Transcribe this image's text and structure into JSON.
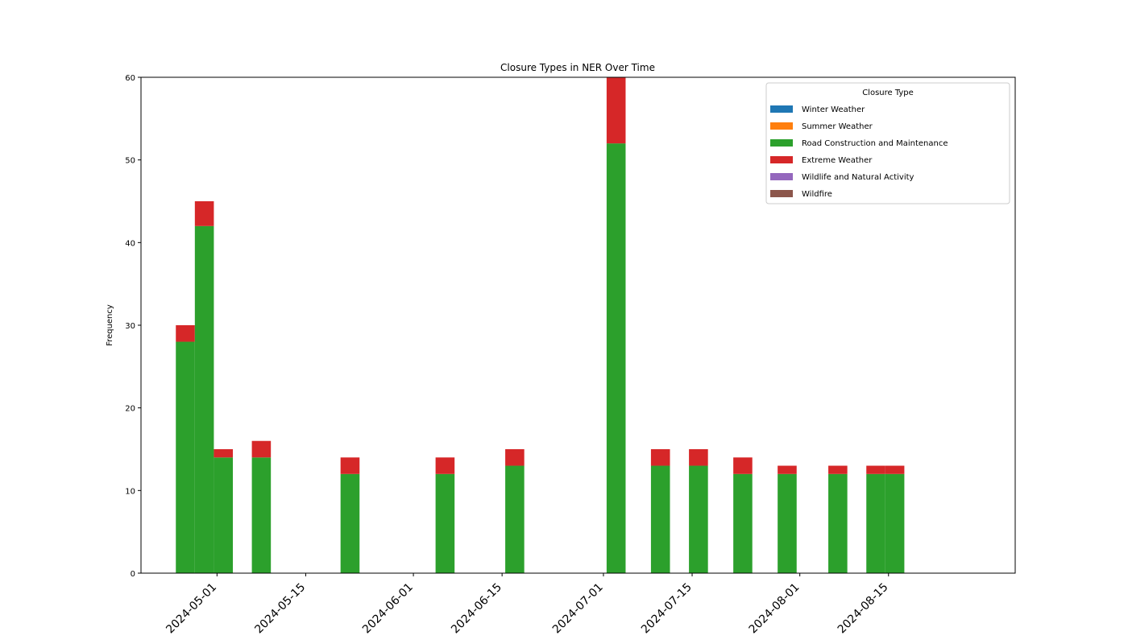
{
  "chart_data": {
    "type": "bar",
    "stacked": true,
    "title": "Closure Types in NER Over Time",
    "xlabel": "",
    "ylabel": "Frequency",
    "ylim": [
      0,
      60
    ],
    "yticks": [
      0,
      10,
      20,
      30,
      40,
      50,
      60
    ],
    "xlim": [
      "2024-04-19",
      "2024-09-04"
    ],
    "xticks": [
      "2024-05-01",
      "2024-05-15",
      "2024-06-01",
      "2024-06-15",
      "2024-07-01",
      "2024-07-15",
      "2024-08-01",
      "2024-08-15"
    ],
    "bar_width_days": 3,
    "grid": false,
    "legend": {
      "title": "Closure Type",
      "placement": "top-right"
    },
    "x": [
      "2024-04-26",
      "2024-04-29",
      "2024-05-02",
      "2024-05-08",
      "2024-05-22",
      "2024-06-06",
      "2024-06-17",
      "2024-07-03",
      "2024-07-10",
      "2024-07-16",
      "2024-07-23",
      "2024-07-30",
      "2024-08-07",
      "2024-08-13",
      "2024-08-16"
    ],
    "series": [
      {
        "name": "Winter Weather",
        "color": "#1f77b4",
        "values": [
          0,
          0,
          0,
          0,
          0,
          0,
          0,
          0,
          0,
          0,
          0,
          0,
          0,
          0,
          0
        ]
      },
      {
        "name": "Summer Weather",
        "color": "#ff7f0e",
        "values": [
          0,
          0,
          0,
          0,
          0,
          0,
          0,
          0,
          0,
          0,
          0,
          0,
          0,
          0,
          0
        ]
      },
      {
        "name": "Road Construction and Maintenance",
        "color": "#2ca02c",
        "values": [
          28,
          42,
          14,
          14,
          12,
          12,
          13,
          52,
          13,
          13,
          12,
          12,
          12,
          12,
          12
        ]
      },
      {
        "name": "Extreme Weather",
        "color": "#d62728",
        "values": [
          2,
          3,
          1,
          2,
          2,
          2,
          2,
          8,
          2,
          2,
          2,
          1,
          1,
          1,
          1
        ]
      },
      {
        "name": "Wildlife and Natural Activity",
        "color": "#9467bd",
        "values": [
          0,
          0,
          0,
          0,
          0,
          0,
          0,
          0,
          0,
          0,
          0,
          0,
          0,
          0,
          0
        ]
      },
      {
        "name": "Wildfire",
        "color": "#8c564b",
        "values": [
          0,
          0,
          0,
          0,
          0,
          0,
          0,
          0,
          0,
          0,
          0,
          0,
          0,
          0,
          0
        ]
      }
    ]
  }
}
